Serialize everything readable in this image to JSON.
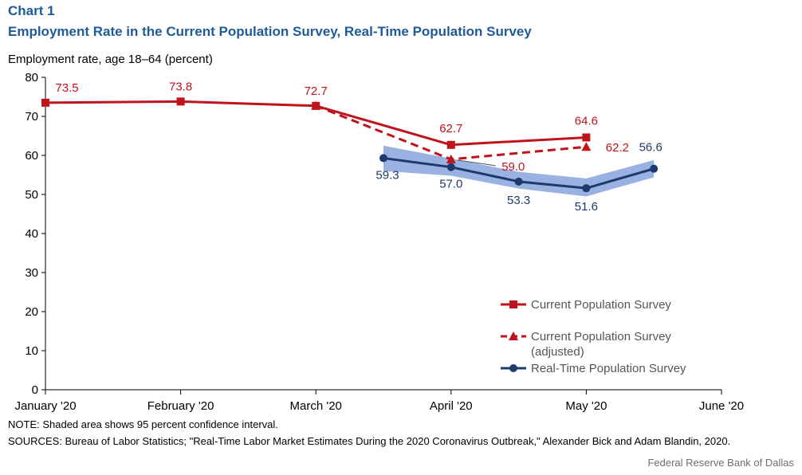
{
  "header": {
    "chart_label": "Chart 1",
    "title": "Employment Rate in the Current Population Survey, Real-Time Population Survey"
  },
  "footer": {
    "note": "NOTE: Shaded area shows 95 percent confidence interval.",
    "sources": "SOURCES: Bureau of Labor Statistics; \"Real-Time Labor Market Estimates During the 2020 Coronavirus Outbreak,\" Alexander Bick and Adam Blandin, 2020.",
    "credit": "Federal Reserve Bank of Dallas"
  },
  "colors": {
    "cps": "#c0141c",
    "rps": "#1d3a6e",
    "ci_band": "#8faadf",
    "title": "#1f5b99"
  },
  "chart_data": {
    "type": "line",
    "ylabel": "Employment rate, age 18–64 (percent)",
    "ylim": [
      0,
      80
    ],
    "yticks": [
      0,
      10,
      20,
      30,
      40,
      50,
      60,
      70,
      80
    ],
    "xlim": [
      0,
      5
    ],
    "categories": [
      "January '20",
      "February '20",
      "March '20",
      "April '20",
      "May '20",
      "June '20"
    ],
    "legend_position": "bottom-right",
    "grid": false,
    "series": [
      {
        "name": "Current Population Survey",
        "marker": "square",
        "line": "solid",
        "color": "#c0141c",
        "x": [
          0,
          1,
          2,
          3,
          4
        ],
        "values": [
          73.5,
          73.8,
          72.7,
          62.7,
          64.6
        ],
        "labels": [
          "73.5",
          "73.8",
          "72.7",
          "62.7",
          "64.6"
        ]
      },
      {
        "name": "Current Population Survey\n(adjusted)",
        "marker": "triangle",
        "line": "dashed",
        "color": "#c0141c",
        "x": [
          2,
          3,
          4
        ],
        "values": [
          72.7,
          59.0,
          62.2
        ],
        "labels": [
          "",
          "59.0",
          "62.2"
        ]
      },
      {
        "name": "Real-Time Population Survey",
        "marker": "circle",
        "line": "solid",
        "color": "#1d3a6e",
        "x": [
          2.5,
          3,
          3.5,
          4,
          4.5
        ],
        "values": [
          59.3,
          57.0,
          53.3,
          51.6,
          56.6
        ],
        "labels": [
          "59.3",
          "57.0",
          "53.3",
          "51.6",
          "56.6"
        ],
        "ci_upper": [
          62.5,
          59.2,
          55.8,
          54.1,
          58.8
        ],
        "ci_lower": [
          56.0,
          54.8,
          51.5,
          49.5,
          54.4
        ]
      }
    ]
  }
}
